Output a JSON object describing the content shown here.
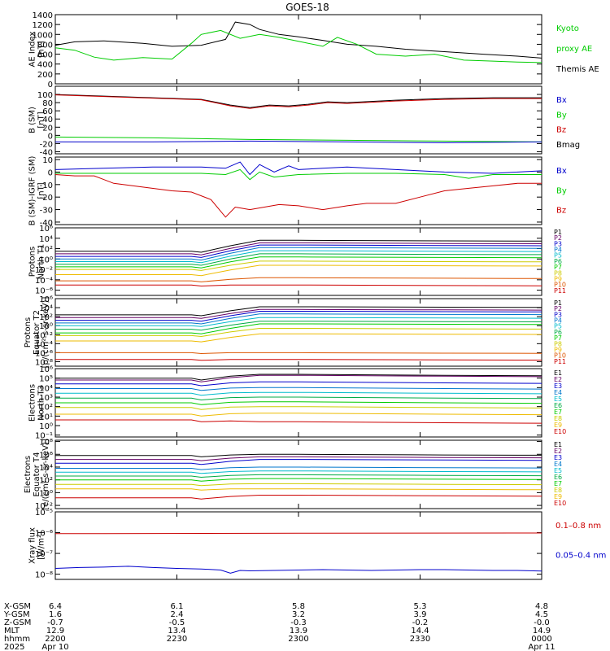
{
  "title": "GOES-18",
  "chart_data": [
    {
      "type": "line",
      "ylabel": [
        "AE Index",
        "[nT]"
      ],
      "ylim": [
        0,
        1400
      ],
      "yticks": [
        "0",
        "200",
        "400",
        "600",
        "800",
        "1000",
        "1200",
        "1400"
      ],
      "yticks_values": [
        0,
        200,
        400,
        600,
        800,
        1000,
        1200,
        1400
      ],
      "legend": [
        {
          "label": "Kyoto",
          "color": "#00cc00"
        },
        {
          "label": "proxy AE",
          "color": "#00cc00"
        },
        {
          "label": "Themis AE",
          "color": "#000000"
        }
      ],
      "series": [
        {
          "name": "Themis AE",
          "color": "#000000",
          "x": [
            0,
            0.04,
            0.1,
            0.18,
            0.24,
            0.3,
            0.35,
            0.37,
            0.4,
            0.42,
            0.46,
            0.5,
            0.55,
            0.6,
            0.66,
            0.72,
            0.8,
            0.88,
            0.95,
            1.0
          ],
          "values": [
            780,
            850,
            870,
            820,
            760,
            780,
            900,
            1250,
            1200,
            1100,
            1000,
            950,
            880,
            800,
            760,
            700,
            650,
            600,
            560,
            520
          ]
        },
        {
          "name": "Kyoto proxy AE",
          "color": "#00cc00",
          "x": [
            0,
            0.04,
            0.08,
            0.12,
            0.18,
            0.24,
            0.28,
            0.3,
            0.34,
            0.38,
            0.42,
            0.46,
            0.5,
            0.55,
            0.58,
            0.62,
            0.66,
            0.72,
            0.78,
            0.84,
            0.9,
            0.95,
            1.0
          ],
          "values": [
            730,
            680,
            540,
            480,
            530,
            500,
            820,
            1000,
            1080,
            920,
            1000,
            940,
            860,
            760,
            940,
            800,
            600,
            560,
            600,
            480,
            460,
            440,
            430
          ]
        }
      ]
    },
    {
      "type": "line",
      "ylabel": [
        "B (SM)",
        "[nT]"
      ],
      "ylim": [
        -45,
        120
      ],
      "yticks": [
        "-40",
        "-20",
        "0",
        "20",
        "40",
        "60",
        "80",
        "100"
      ],
      "yticks_values": [
        -40,
        -20,
        0,
        20,
        40,
        60,
        80,
        100
      ],
      "legend": [
        {
          "label": "Bx",
          "color": "#0000cc"
        },
        {
          "label": "By",
          "color": "#00cc00"
        },
        {
          "label": "Bz",
          "color": "#cc0000"
        },
        {
          "label": "Bmag",
          "color": "#000000"
        }
      ],
      "series": [
        {
          "name": "Bmag",
          "color": "#000000",
          "x": [
            0,
            0.1,
            0.2,
            0.3,
            0.36,
            0.4,
            0.44,
            0.48,
            0.52,
            0.56,
            0.6,
            0.7,
            0.8,
            0.9,
            1.0
          ],
          "values": [
            100,
            96,
            92,
            88,
            74,
            68,
            74,
            72,
            76,
            82,
            80,
            86,
            90,
            92,
            92
          ]
        },
        {
          "name": "Bz",
          "color": "#cc0000",
          "x": [
            0,
            0.1,
            0.2,
            0.3,
            0.36,
            0.4,
            0.44,
            0.48,
            0.52,
            0.56,
            0.6,
            0.7,
            0.8,
            0.9,
            1.0
          ],
          "values": [
            99,
            95,
            91,
            87,
            72,
            66,
            72,
            70,
            74,
            80,
            78,
            84,
            88,
            90,
            90
          ]
        },
        {
          "name": "By",
          "color": "#00cc00",
          "x": [
            0,
            0.2,
            0.4,
            0.6,
            0.8,
            1.0
          ],
          "values": [
            -4,
            -6,
            -10,
            -12,
            -14,
            -16
          ]
        },
        {
          "name": "Bx",
          "color": "#0000cc",
          "x": [
            0,
            0.2,
            0.4,
            0.6,
            0.8,
            1.0
          ],
          "values": [
            -16,
            -16,
            -14,
            -16,
            -18,
            -16
          ]
        }
      ]
    },
    {
      "type": "line",
      "ylabel": [
        "B (SM)-IGRF (SM)",
        "[nT]"
      ],
      "ylim": [
        -42,
        12
      ],
      "yticks": [
        "-40",
        "-30",
        "-20",
        "-10",
        "0",
        "10"
      ],
      "yticks_values": [
        -40,
        -30,
        -20,
        -10,
        0,
        10
      ],
      "legend": [
        {
          "label": "Bx",
          "color": "#0000cc"
        },
        {
          "label": "By",
          "color": "#00cc00"
        },
        {
          "label": "Bz",
          "color": "#cc0000"
        }
      ],
      "series": [
        {
          "name": "Bx",
          "color": "#0000cc",
          "x": [
            0,
            0.1,
            0.2,
            0.3,
            0.35,
            0.38,
            0.4,
            0.42,
            0.45,
            0.48,
            0.5,
            0.55,
            0.6,
            0.7,
            0.8,
            0.9,
            1.0
          ],
          "values": [
            2,
            3,
            4,
            4,
            3,
            8,
            -2,
            6,
            0,
            5,
            2,
            3,
            4,
            2,
            0,
            -1,
            1
          ]
        },
        {
          "name": "By",
          "color": "#00cc00",
          "x": [
            0,
            0.1,
            0.2,
            0.3,
            0.35,
            0.38,
            0.4,
            0.42,
            0.45,
            0.5,
            0.6,
            0.7,
            0.8,
            0.85,
            0.9,
            1.0
          ],
          "values": [
            -1,
            -1,
            -1,
            -1,
            -2,
            2,
            -6,
            0,
            -4,
            -2,
            -1,
            -1,
            -2,
            -5,
            -2,
            -2
          ]
        },
        {
          "name": "Bz",
          "color": "#cc0000",
          "x": [
            0,
            0.04,
            0.08,
            0.12,
            0.18,
            0.24,
            0.28,
            0.32,
            0.35,
            0.37,
            0.4,
            0.43,
            0.46,
            0.5,
            0.55,
            0.6,
            0.64,
            0.7,
            0.75,
            0.8,
            0.85,
            0.9,
            0.95,
            1.0
          ],
          "values": [
            -2,
            -3,
            -3,
            -9,
            -12,
            -15,
            -16,
            -22,
            -36,
            -28,
            -30,
            -28,
            -26,
            -27,
            -30,
            -27,
            -25,
            -25,
            -20,
            -15,
            -13,
            -11,
            -9,
            -9
          ]
        }
      ]
    },
    {
      "type": "line",
      "log": true,
      "ylabel": [
        "Protons",
        "North T1"
      ],
      "ylim_exp": [
        -7,
        6
      ],
      "ytick_exponents": [
        -6,
        -4,
        -2,
        0,
        2,
        4,
        6
      ],
      "legend_labels": [
        "P1",
        "P2",
        "P3",
        "P4",
        "P5",
        "P6",
        "P7",
        "P8",
        "P9",
        "P10",
        "P11"
      ],
      "legend_colors": [
        "#000000",
        "#660066",
        "#0000cc",
        "#0077cc",
        "#00bbcc",
        "#00aa44",
        "#00cc00",
        "#cccc00",
        "#eebb00",
        "#dd5500",
        "#cc0000"
      ],
      "levels_before": [
        1.5,
        1.0,
        0.5,
        0.0,
        -0.5,
        -1.0,
        -1.5,
        -2.0,
        -3.0,
        -4.2,
        -5.0
      ],
      "levels_after": [
        3.6,
        3.1,
        2.7,
        2.2,
        1.6,
        1.0,
        0.4,
        -0.4,
        -1.2,
        -3.6,
        -5.0
      ]
    },
    {
      "type": "line",
      "log": true,
      "ylabel": [
        "Protons",
        "Equator T2",
        "[p/(cm²-s-sr-keV)]"
      ],
      "ylim_exp": [
        -9,
        6
      ],
      "ytick_exponents": [
        -8,
        -6,
        -4,
        -2,
        0,
        2,
        4,
        6
      ],
      "legend_labels": [
        "P1",
        "P2",
        "P3",
        "P4",
        "P5",
        "P6",
        "P7",
        "P8",
        "P9",
        "P10",
        "P11"
      ],
      "legend_colors": [
        "#000000",
        "#660066",
        "#0000cc",
        "#0077cc",
        "#00bbcc",
        "#00aa44",
        "#00cc00",
        "#cccc00",
        "#eebb00",
        "#dd5500",
        "#cc0000"
      ],
      "levels_before": [
        2.4,
        1.8,
        1.2,
        0.6,
        0.0,
        -0.8,
        -1.6,
        -2.2,
        -3.4,
        -6,
        -7.5
      ],
      "levels_after": [
        4.2,
        3.6,
        3.2,
        2.6,
        1.8,
        1.0,
        0.4,
        -0.6,
        -1.8,
        -6,
        -7.5
      ]
    },
    {
      "type": "line",
      "log": true,
      "ylabel": [
        "Electrons",
        "North T3"
      ],
      "ylim_exp": [
        -1.2,
        6
      ],
      "ytick_exponents": [
        -1,
        0,
        1,
        2,
        3,
        4,
        5,
        6
      ],
      "legend_labels": [
        "E1",
        "E2",
        "E3",
        "E4",
        "E5",
        "E6",
        "E7",
        "E8",
        "E9",
        "E10"
      ],
      "legend_colors": [
        "#000000",
        "#660066",
        "#0000cc",
        "#0077cc",
        "#00bbcc",
        "#00aa44",
        "#00cc00",
        "#cccc00",
        "#eebb00",
        "#cc0000"
      ],
      "levels_before": [
        5.0,
        4.8,
        4.4,
        3.9,
        3.4,
        2.9,
        2.4,
        1.9,
        1.2,
        0.6
      ],
      "levels_after": [
        5.4,
        5.3,
        4.6,
        4.0,
        3.5,
        3.0,
        2.5,
        2.0,
        1.3,
        0.4
      ]
    },
    {
      "type": "line",
      "log": true,
      "ylabel": [
        "Electrons",
        "Equator T4",
        "[e/(cm²-s-sr-keV)]"
      ],
      "ylim_exp": [
        -2.5,
        8.2
      ],
      "ytick_exponents": [
        -2,
        0,
        2,
        4,
        6,
        8
      ],
      "legend_labels": [
        "E1",
        "E2",
        "E3",
        "E4",
        "E5",
        "E6",
        "E7",
        "E8",
        "E9",
        "E10"
      ],
      "legend_colors": [
        "#000000",
        "#660066",
        "#0000cc",
        "#0077cc",
        "#00bbcc",
        "#00aa44",
        "#00cc00",
        "#cccc00",
        "#eebb00",
        "#cc0000"
      ],
      "levels_before": [
        5.8,
        5.2,
        4.6,
        3.8,
        3.2,
        2.6,
        2.0,
        1.3,
        0.6,
        -0.8
      ],
      "levels_after": [
        6.0,
        5.6,
        5.2,
        4.0,
        3.4,
        2.8,
        2.2,
        1.4,
        0.6,
        -0.4
      ]
    },
    {
      "type": "line",
      "log": true,
      "ylabel": [
        "Xray flux",
        "[W/m²]"
      ],
      "ylim_exp": [
        -8.25,
        -5
      ],
      "ytick_exponents": [
        -8,
        -7,
        -6,
        -5
      ],
      "legend": [
        {
          "label": "0.1–0.8 nm",
          "color": "#cc0000"
        },
        {
          "label": "0.05–0.4 nm",
          "color": "#0000cc"
        }
      ],
      "series": [
        {
          "name": "0.1–0.8 nm",
          "color": "#cc0000",
          "x": [
            0,
            0.5,
            1.0
          ],
          "values": [
            -6.05,
            -6.03,
            -6.02
          ]
        },
        {
          "name": "0.05–0.4 nm",
          "color": "#0000cc",
          "x": [
            0,
            0.05,
            0.1,
            0.15,
            0.2,
            0.25,
            0.3,
            0.34,
            0.36,
            0.38,
            0.4,
            0.45,
            0.5,
            0.55,
            0.6,
            0.65,
            0.7,
            0.75,
            0.8,
            0.85,
            0.9,
            0.95,
            1.0
          ],
          "values": [
            -7.72,
            -7.68,
            -7.66,
            -7.62,
            -7.68,
            -7.72,
            -7.75,
            -7.8,
            -7.95,
            -7.82,
            -7.84,
            -7.82,
            -7.8,
            -7.78,
            -7.8,
            -7.82,
            -7.8,
            -7.78,
            -7.78,
            -7.8,
            -7.82,
            -7.82,
            -7.85
          ]
        }
      ]
    }
  ],
  "xaxis": {
    "row_labels": [
      "X-GSM",
      "Y-GSM",
      "Z-GSM",
      "MLT",
      "hhmm",
      "2025"
    ],
    "columns": [
      {
        "x": 0.0,
        "values": [
          "6.4",
          "1.6",
          "-0.7",
          "12.9",
          "2200",
          "Apr 10"
        ]
      },
      {
        "x": 0.25,
        "values": [
          "6.1",
          "2.4",
          "-0.5",
          "13.4",
          "2230",
          ""
        ]
      },
      {
        "x": 0.5,
        "values": [
          "5.8",
          "3.2",
          "-0.3",
          "13.9",
          "2300",
          ""
        ]
      },
      {
        "x": 0.75,
        "values": [
          "5.3",
          "3.9",
          "-0.2",
          "14.4",
          "2330",
          ""
        ]
      },
      {
        "x": 1.0,
        "values": [
          "4.8",
          "4.5",
          "-0.0",
          "14.9",
          "0000",
          "Apr 11"
        ]
      }
    ]
  }
}
